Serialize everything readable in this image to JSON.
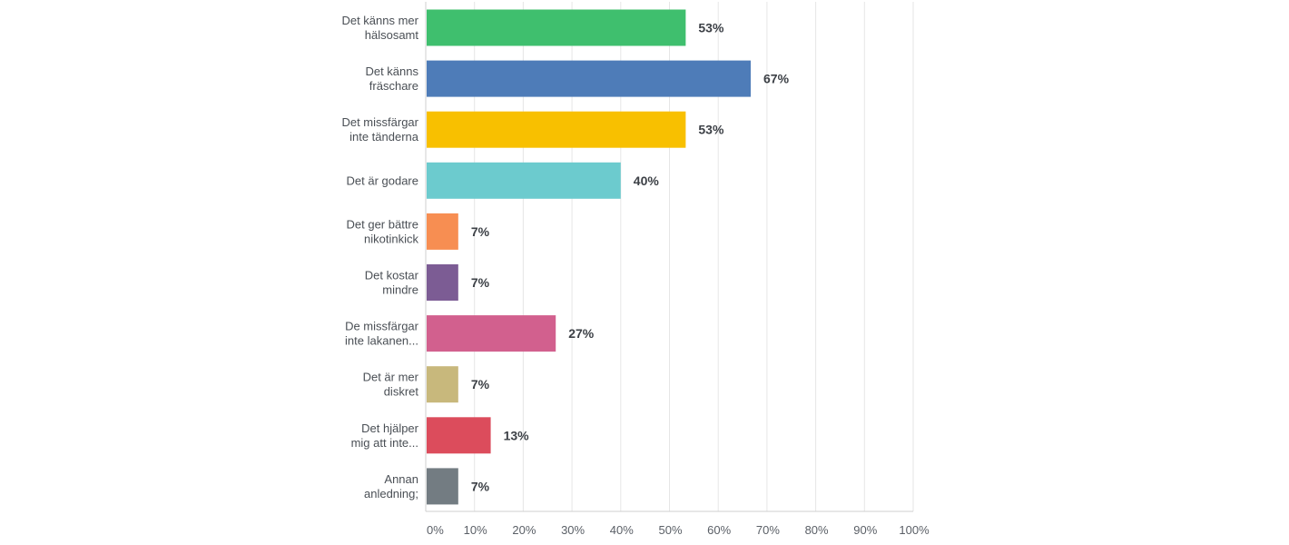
{
  "chart_data": {
    "type": "bar",
    "orientation": "horizontal",
    "categories": [
      [
        "Det känns mer",
        "hälsosamt"
      ],
      [
        "Det känns",
        "fräschare"
      ],
      [
        "Det missfärgar",
        "inte tänderna"
      ],
      [
        "Det är godare"
      ],
      [
        "Det ger bättre",
        "nikotinkick"
      ],
      [
        "Det kostar",
        "mindre"
      ],
      [
        "De missfärgar",
        "inte lakanen..."
      ],
      [
        "Det är mer",
        "diskret"
      ],
      [
        "Det hjälper",
        "mig att inte..."
      ],
      [
        "Annan",
        "anledning;"
      ]
    ],
    "values": [
      53.33,
      66.67,
      53.33,
      40.0,
      6.67,
      6.67,
      26.67,
      6.67,
      13.33,
      6.67
    ],
    "value_labels": [
      "53%",
      "67%",
      "53%",
      "40%",
      "7%",
      "7%",
      "27%",
      "7%",
      "13%",
      "7%"
    ],
    "colors": [
      "#3fbf6e",
      "#4e7cb8",
      "#f8c000",
      "#6ccbce",
      "#f78e52",
      "#7c5c94",
      "#d2608e",
      "#c8b87c",
      "#dc4c5c",
      "#737c82"
    ],
    "xlim": [
      0,
      100
    ],
    "xticks": [
      0,
      10,
      20,
      30,
      40,
      50,
      60,
      70,
      80,
      90,
      100
    ],
    "xtick_labels": [
      "0%",
      "10%",
      "20%",
      "30%",
      "40%",
      "50%",
      "60%",
      "70%",
      "80%",
      "90%",
      "100%"
    ],
    "grid": true,
    "title": "",
    "xlabel": "",
    "ylabel": ""
  }
}
